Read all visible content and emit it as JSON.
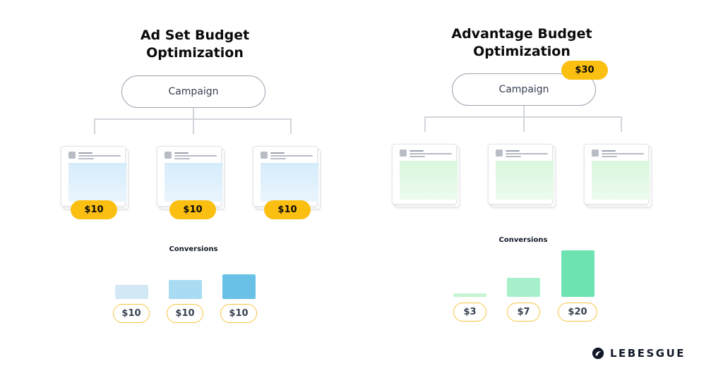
{
  "left_panel": {
    "title_line1": "Ad Set Budget",
    "title_line2": "Optimization",
    "campaign_label": "Campaign",
    "adsets": [
      {
        "budget": "$10"
      },
      {
        "budget": "$10"
      },
      {
        "budget": "$10"
      }
    ],
    "conversions_label": "Conversions",
    "conversions": [
      {
        "label": "$10",
        "color": "#d3e8f5"
      },
      {
        "label": "$10",
        "color": "#a9dbf3"
      },
      {
        "label": "$10",
        "color": "#6ac1e7"
      }
    ]
  },
  "right_panel": {
    "title_line1": "Advantage Budget",
    "title_line2": "Optimization",
    "campaign_label": "Campaign",
    "campaign_budget": "$30",
    "adsets": [
      {},
      {},
      {}
    ],
    "conversions_label": "Conversions",
    "conversions": [
      {
        "label": "$3",
        "value": 3,
        "color": "#c8f3d4"
      },
      {
        "label": "$7",
        "value": 7,
        "color": "#a8f0cc"
      },
      {
        "label": "$20",
        "value": 20,
        "color": "#6ee3b2"
      }
    ]
  },
  "brand": {
    "name": "LEBESGUE",
    "logo": "lebesgue-logo-icon"
  },
  "colors": {
    "budget_pill": "#fbbf12",
    "pill_outline": "#f5c542",
    "connector": "#d1d5db"
  }
}
